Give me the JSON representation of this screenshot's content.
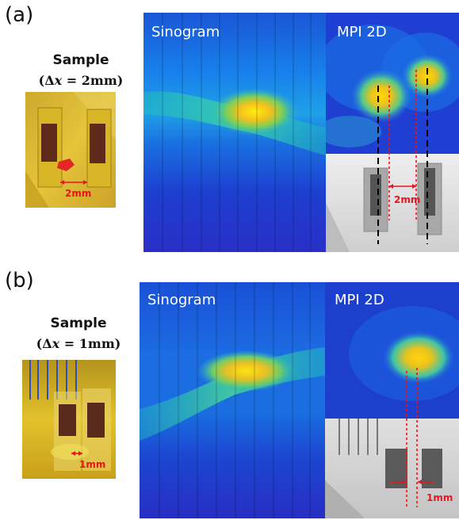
{
  "panel_a": {
    "letter": "(a)",
    "sample_title": "Sample",
    "sample_param_open": "(Δ",
    "sample_param_var": "x",
    "sample_param_rest": " = 2mm)",
    "photo_gap_label": "2mm",
    "sinogram_label": "Sinogram",
    "mpi_label": "MPI 2D",
    "mpi_gap_label": "2mm"
  },
  "panel_b": {
    "letter": "(b)",
    "sample_title": "Sample",
    "sample_param_open": "(Δ",
    "sample_param_var": "x",
    "sample_param_rest": " = 1mm)",
    "photo_gap_label": "1mm",
    "sinogram_label": "Sinogram",
    "mpi_label": "MPI 2D",
    "mpi_gap_label": "1mm"
  },
  "colors": {
    "annotation_red": "#e8141d",
    "colormap": "jet"
  }
}
